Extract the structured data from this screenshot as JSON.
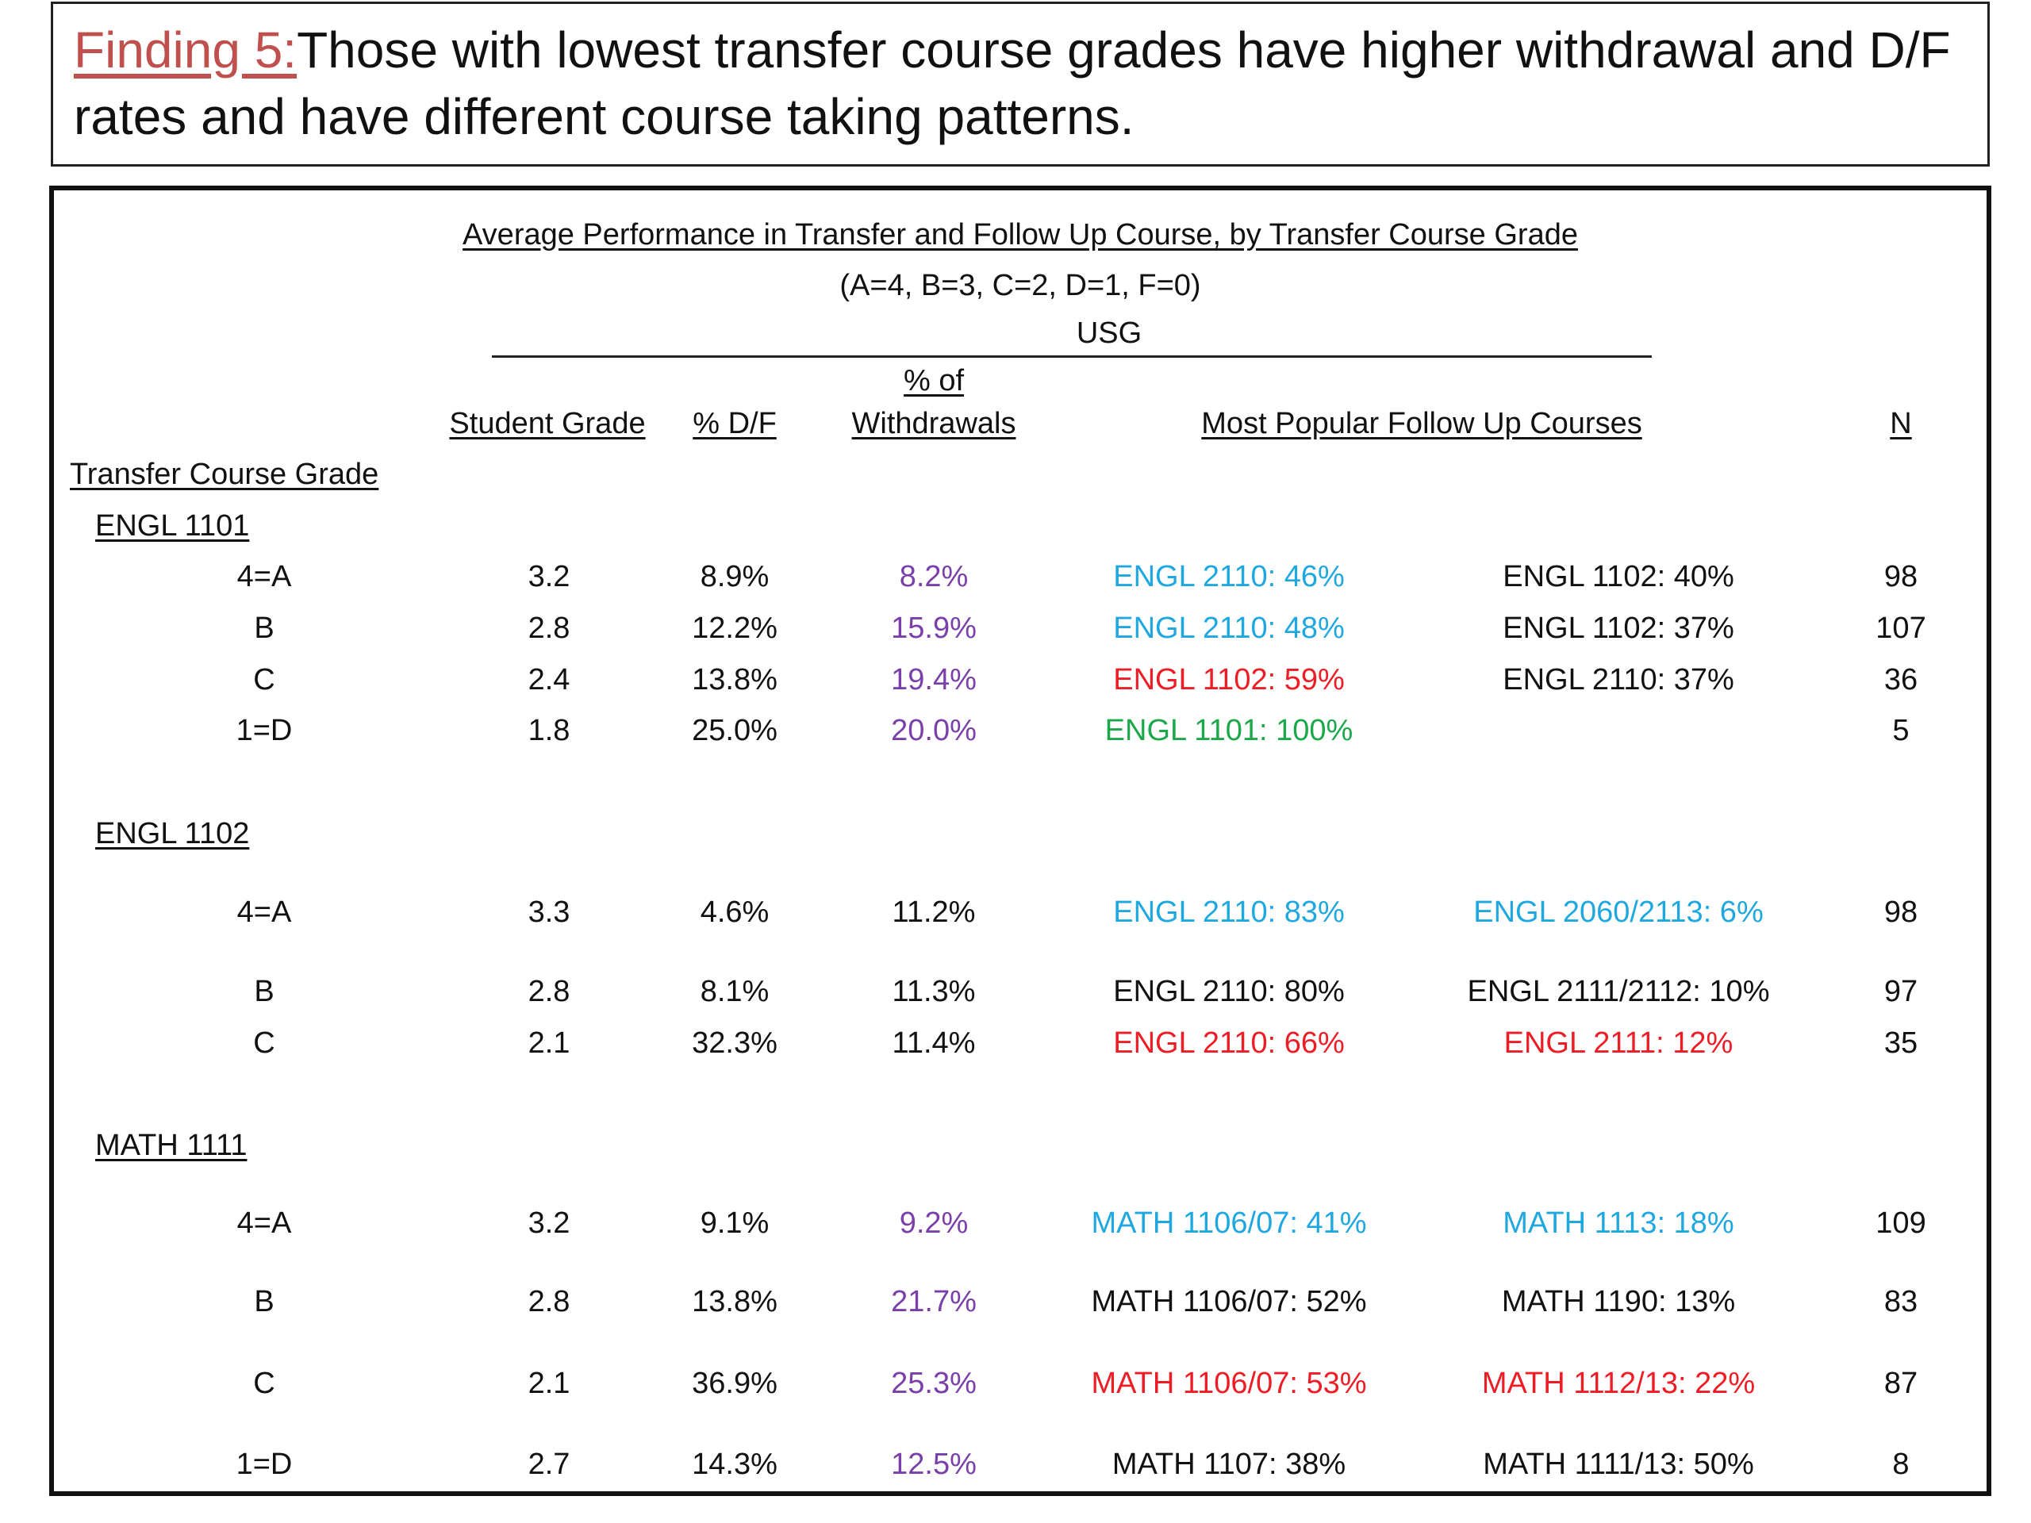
{
  "heading": {
    "label": "Finding 5:",
    "text": "Those with lowest transfer course grades have higher withdrawal  and D/F rates and have different course taking patterns."
  },
  "table": {
    "title": "Average Performance in Transfer and Follow Up Course, by Transfer Course Grade",
    "subtitle": "(A=4, B=3, C=2, D=1, F=0)",
    "group": "USG",
    "headers": {
      "student_grade": "Student Grade",
      "df": "% D/F",
      "withdrawals_top": "% of",
      "withdrawals": "Withdrawals",
      "follow_up": "Most Popular Follow Up Courses",
      "n": "N",
      "row_header": "Transfer Course Grade"
    },
    "colors": {
      "blue": "#1fa8e0",
      "red": "#ee1c24",
      "green": "#1aa84a",
      "purple": "#7a3fa8",
      "finding_label": "#c0504d"
    },
    "sections": [
      {
        "name": "ENGL 1101",
        "rows": [
          {
            "grade": "4=A",
            "student": "3.2",
            "df": "8.9%",
            "wd": "8.2%",
            "c1": "ENGL 2110: 46%",
            "c2": "ENGL 1102: 40%",
            "n": "98"
          },
          {
            "grade": "B",
            "student": "2.8",
            "df": "12.2%",
            "wd": "15.9%",
            "c1": "ENGL 2110: 48%",
            "c2": "ENGL 1102: 37%",
            "n": "107"
          },
          {
            "grade": "C",
            "student": "2.4",
            "df": "13.8%",
            "wd": "19.4%",
            "c1": "ENGL 1102: 59%",
            "c2": "ENGL 2110: 37%",
            "n": "36"
          },
          {
            "grade": "1=D",
            "student": "1.8",
            "df": "25.0%",
            "wd": "20.0%",
            "c1": "ENGL 1101: 100%",
            "c2": "",
            "n": "5"
          }
        ]
      },
      {
        "name": "ENGL 1102",
        "rows": [
          {
            "grade": "4=A",
            "student": "3.3",
            "df": "4.6%",
            "wd": "11.2%",
            "c1": "ENGL 2110: 83%",
            "c2": "ENGL 2060/2113: 6%",
            "n": "98"
          },
          {
            "grade": "B",
            "student": "2.8",
            "df": "8.1%",
            "wd": "11.3%",
            "c1": "ENGL 2110: 80%",
            "c2": "ENGL 2111/2112: 10%",
            "n": "97"
          },
          {
            "grade": "C",
            "student": "2.1",
            "df": "32.3%",
            "wd": "11.4%",
            "c1": "ENGL 2110: 66%",
            "c2": "ENGL 2111: 12%",
            "n": "35"
          }
        ]
      },
      {
        "name": "MATH 1111",
        "rows": [
          {
            "grade": "4=A",
            "student": "3.2",
            "df": "9.1%",
            "wd": "9.2%",
            "c1": "MATH 1106/07: 41%",
            "c2": "MATH 1113: 18%",
            "n": "109"
          },
          {
            "grade": "B",
            "student": "2.8",
            "df": "13.8%",
            "wd": "21.7%",
            "c1": "MATH 1106/07: 52%",
            "c2": "MATH 1190: 13%",
            "n": "83"
          },
          {
            "grade": "C",
            "student": "2.1",
            "df": "36.9%",
            "wd": "25.3%",
            "c1": "MATH 1106/07: 53%",
            "c2": "MATH 1112/13: 22%",
            "n": "87"
          },
          {
            "grade": "1=D",
            "student": "2.7",
            "df": "14.3%",
            "wd": "12.5%",
            "c1": "MATH 1107: 38%",
            "c2": "MATH 1111/13: 50%",
            "n": "8"
          }
        ]
      }
    ]
  }
}
